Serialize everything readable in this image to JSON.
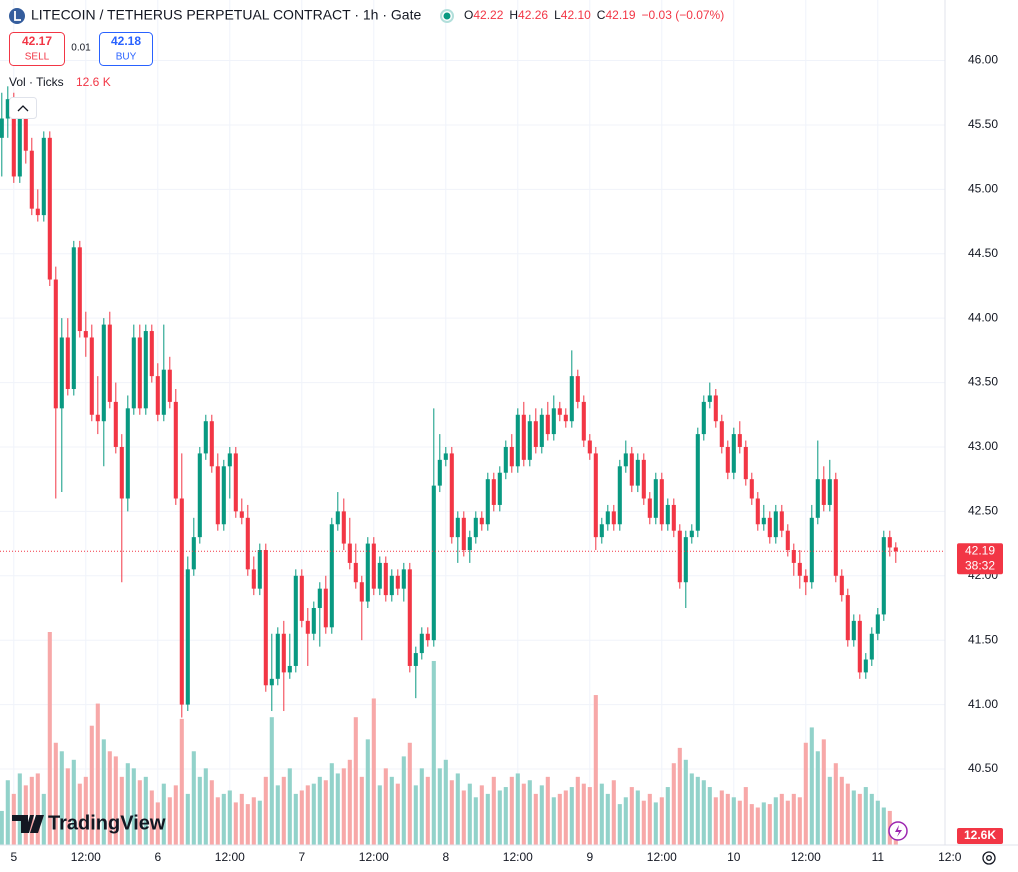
{
  "header": {
    "title": "LITECOIN / TETHERUS PERPETUAL CONTRACT · 1h · Gate",
    "ohlc_legend": [
      {
        "key": "O",
        "value": "42.22"
      },
      {
        "key": "H",
        "value": "42.26"
      },
      {
        "key": "L",
        "value": "42.10"
      },
      {
        "key": "C",
        "value": "42.19"
      }
    ],
    "change": "−0.03 (−0.07%)",
    "sell": {
      "price": "42.17",
      "label": "SELL"
    },
    "spread": "0.01",
    "buy": {
      "price": "42.18",
      "label": "BUY"
    },
    "volume_title": "Vol · Ticks",
    "volume_label": "12.6 K"
  },
  "chart_data": {
    "type": "candlestick",
    "up_color": "#089981",
    "down_color": "#f23645",
    "volume_up_color": "#92d2ca",
    "volume_down_color": "#f7a8a8",
    "grid": true,
    "xlim": [
      -0.3,
      157.2
    ],
    "ylim": [
      39.91,
      46.47
    ],
    "xticks": [
      {
        "value": 2,
        "label": "5"
      },
      {
        "value": 14,
        "label": "12:00"
      },
      {
        "value": 26,
        "label": "6"
      },
      {
        "value": 38,
        "label": "12:00"
      },
      {
        "value": 50,
        "label": "7"
      },
      {
        "value": 62,
        "label": "12:00"
      },
      {
        "value": 74,
        "label": "8"
      },
      {
        "value": 86,
        "label": "12:00"
      },
      {
        "value": 98,
        "label": "9"
      },
      {
        "value": 110,
        "label": "12:00"
      },
      {
        "value": 122,
        "label": "10"
      },
      {
        "value": 134,
        "label": "12:00"
      },
      {
        "value": 146,
        "label": "11"
      },
      {
        "value": 158,
        "label": "12:0"
      }
    ],
    "yticks": [
      {
        "value": 40.5,
        "label": "40.50"
      },
      {
        "value": 41,
        "label": "41.00"
      },
      {
        "value": 41.5,
        "label": "41.50"
      },
      {
        "value": 42,
        "label": "42.00"
      },
      {
        "value": 42.5,
        "label": "42.50"
      },
      {
        "value": 43,
        "label": "43.00"
      },
      {
        "value": 43.5,
        "label": "43.50"
      },
      {
        "value": 44,
        "label": "44.00"
      },
      {
        "value": 44.5,
        "label": "44.50"
      },
      {
        "value": 45,
        "label": "45.00"
      },
      {
        "value": 45.5,
        "label": "45.50"
      },
      {
        "value": 46,
        "label": "46.00"
      }
    ],
    "candles": [
      [
        45.4,
        45.75,
        45.1,
        45.55
      ],
      [
        45.55,
        45.8,
        45.4,
        45.7
      ],
      [
        45.7,
        45.75,
        45.05,
        45.1
      ],
      [
        45.1,
        45.7,
        45.05,
        45.6
      ],
      [
        45.6,
        45.65,
        45.2,
        45.3
      ],
      [
        45.3,
        45.4,
        44.8,
        44.85
      ],
      [
        44.85,
        45.0,
        44.75,
        44.8
      ],
      [
        44.8,
        45.45,
        44.75,
        45.4
      ],
      [
        45.4,
        45.45,
        44.25,
        44.3
      ],
      [
        44.3,
        44.4,
        42.6,
        43.3
      ],
      [
        43.3,
        44.0,
        42.65,
        43.85
      ],
      [
        43.85,
        44.0,
        43.4,
        43.45
      ],
      [
        43.45,
        44.6,
        43.4,
        44.55
      ],
      [
        44.55,
        44.6,
        43.85,
        43.9
      ],
      [
        43.9,
        44.05,
        43.7,
        43.85
      ],
      [
        43.85,
        43.95,
        43.2,
        43.25
      ],
      [
        43.25,
        43.55,
        43.1,
        43.2
      ],
      [
        43.2,
        44.0,
        42.85,
        43.95
      ],
      [
        43.95,
        44.05,
        43.3,
        43.35
      ],
      [
        43.35,
        43.5,
        42.95,
        43.0
      ],
      [
        43.0,
        43.1,
        41.95,
        42.6
      ],
      [
        42.6,
        43.4,
        42.5,
        43.3
      ],
      [
        43.3,
        43.95,
        43.25,
        43.85
      ],
      [
        43.85,
        43.95,
        43.25,
        43.3
      ],
      [
        43.3,
        43.95,
        43.25,
        43.9
      ],
      [
        43.9,
        43.95,
        43.5,
        43.55
      ],
      [
        43.55,
        43.65,
        43.2,
        43.25
      ],
      [
        43.25,
        43.95,
        43.2,
        43.6
      ],
      [
        43.6,
        43.7,
        43.3,
        43.35
      ],
      [
        43.35,
        43.45,
        42.55,
        42.6
      ],
      [
        42.6,
        42.95,
        40.9,
        41.0
      ],
      [
        41.0,
        42.15,
        40.95,
        42.05
      ],
      [
        42.05,
        42.45,
        42.0,
        42.3
      ],
      [
        42.3,
        43.0,
        42.25,
        42.95
      ],
      [
        42.95,
        43.25,
        42.9,
        43.2
      ],
      [
        43.2,
        43.25,
        42.8,
        42.85
      ],
      [
        42.85,
        42.95,
        42.35,
        42.4
      ],
      [
        42.4,
        42.9,
        42.35,
        42.85
      ],
      [
        42.85,
        43.0,
        42.6,
        42.95
      ],
      [
        42.95,
        43.0,
        42.45,
        42.5
      ],
      [
        42.5,
        42.6,
        42.4,
        42.45
      ],
      [
        42.45,
        42.55,
        42.0,
        42.05
      ],
      [
        42.05,
        42.15,
        41.85,
        41.9
      ],
      [
        41.9,
        42.25,
        41.85,
        42.2
      ],
      [
        42.2,
        42.25,
        41.1,
        41.15
      ],
      [
        41.15,
        41.55,
        40.95,
        41.2
      ],
      [
        41.2,
        41.6,
        41.15,
        41.55
      ],
      [
        41.55,
        41.65,
        40.95,
        41.25
      ],
      [
        41.25,
        41.55,
        41.2,
        41.3
      ],
      [
        41.3,
        42.05,
        41.25,
        42.0
      ],
      [
        42.0,
        42.05,
        41.6,
        41.65
      ],
      [
        41.65,
        41.75,
        41.3,
        41.55
      ],
      [
        41.55,
        41.8,
        41.5,
        41.75
      ],
      [
        41.75,
        41.95,
        41.45,
        41.9
      ],
      [
        41.9,
        42.0,
        41.55,
        41.6
      ],
      [
        41.6,
        42.45,
        41.55,
        42.4
      ],
      [
        42.4,
        42.65,
        42.35,
        42.5
      ],
      [
        42.5,
        42.6,
        42.2,
        42.25
      ],
      [
        42.25,
        42.45,
        42.05,
        42.1
      ],
      [
        42.1,
        42.25,
        41.9,
        41.95
      ],
      [
        41.95,
        42.0,
        41.5,
        41.8
      ],
      [
        41.8,
        42.3,
        41.75,
        42.25
      ],
      [
        42.25,
        42.3,
        41.85,
        41.9
      ],
      [
        41.9,
        42.15,
        41.85,
        42.1
      ],
      [
        42.1,
        42.15,
        41.8,
        41.85
      ],
      [
        41.85,
        42.05,
        41.8,
        42.0
      ],
      [
        42.0,
        42.05,
        41.85,
        41.9
      ],
      [
        41.9,
        42.1,
        41.8,
        42.05
      ],
      [
        42.05,
        42.1,
        41.25,
        41.3
      ],
      [
        41.3,
        41.45,
        41.05,
        41.4
      ],
      [
        41.4,
        41.6,
        41.35,
        41.55
      ],
      [
        41.55,
        41.6,
        41.45,
        41.5
      ],
      [
        41.5,
        43.3,
        41.45,
        42.7
      ],
      [
        42.7,
        43.1,
        42.65,
        42.9
      ],
      [
        42.9,
        43.0,
        42.85,
        42.95
      ],
      [
        42.95,
        43.0,
        42.25,
        42.3
      ],
      [
        42.3,
        42.5,
        42.1,
        42.45
      ],
      [
        42.45,
        42.5,
        42.15,
        42.2
      ],
      [
        42.2,
        42.35,
        42.1,
        42.3
      ],
      [
        42.3,
        42.5,
        42.25,
        42.45
      ],
      [
        42.45,
        42.5,
        42.35,
        42.4
      ],
      [
        42.4,
        42.8,
        42.35,
        42.75
      ],
      [
        42.75,
        42.8,
        42.5,
        42.55
      ],
      [
        42.55,
        42.85,
        42.5,
        42.8
      ],
      [
        42.8,
        43.05,
        42.75,
        43.0
      ],
      [
        43.0,
        43.1,
        42.8,
        42.85
      ],
      [
        42.85,
        43.3,
        42.8,
        43.25
      ],
      [
        43.25,
        43.35,
        42.85,
        42.9
      ],
      [
        42.9,
        43.25,
        42.85,
        43.2
      ],
      [
        43.2,
        43.3,
        42.95,
        43.0
      ],
      [
        43.0,
        43.3,
        42.95,
        43.25
      ],
      [
        43.25,
        43.35,
        43.05,
        43.1
      ],
      [
        43.1,
        43.4,
        43.05,
        43.3
      ],
      [
        43.3,
        43.35,
        43.2,
        43.25
      ],
      [
        43.25,
        43.3,
        43.15,
        43.2
      ],
      [
        43.2,
        43.75,
        43.15,
        43.55
      ],
      [
        43.55,
        43.6,
        43.3,
        43.35
      ],
      [
        43.35,
        43.4,
        43.0,
        43.05
      ],
      [
        43.05,
        43.1,
        42.9,
        42.95
      ],
      [
        42.95,
        43.0,
        42.2,
        42.3
      ],
      [
        42.3,
        42.45,
        42.25,
        42.4
      ],
      [
        42.4,
        42.55,
        42.35,
        42.5
      ],
      [
        42.5,
        42.55,
        42.35,
        42.4
      ],
      [
        42.4,
        42.9,
        42.35,
        42.85
      ],
      [
        42.85,
        43.05,
        42.8,
        42.95
      ],
      [
        42.95,
        43.0,
        42.65,
        42.7
      ],
      [
        42.7,
        42.95,
        42.65,
        42.9
      ],
      [
        42.9,
        42.95,
        42.55,
        42.6
      ],
      [
        42.6,
        42.65,
        42.4,
        42.45
      ],
      [
        42.45,
        42.8,
        42.4,
        42.75
      ],
      [
        42.75,
        42.8,
        42.35,
        42.4
      ],
      [
        42.4,
        42.6,
        42.35,
        42.55
      ],
      [
        42.55,
        42.6,
        42.3,
        42.35
      ],
      [
        42.35,
        42.4,
        41.9,
        41.95
      ],
      [
        41.95,
        42.35,
        41.75,
        42.3
      ],
      [
        42.3,
        42.4,
        42.25,
        42.35
      ],
      [
        42.35,
        43.15,
        42.3,
        43.1
      ],
      [
        43.1,
        43.4,
        43.05,
        43.35
      ],
      [
        43.35,
        43.5,
        43.3,
        43.4
      ],
      [
        43.4,
        43.45,
        43.15,
        43.2
      ],
      [
        43.2,
        43.25,
        42.95,
        43.0
      ],
      [
        43.0,
        43.05,
        42.75,
        42.8
      ],
      [
        42.8,
        43.15,
        42.75,
        43.1
      ],
      [
        43.1,
        43.2,
        42.95,
        43.0
      ],
      [
        43.0,
        43.05,
        42.7,
        42.75
      ],
      [
        42.75,
        42.8,
        42.55,
        42.6
      ],
      [
        42.6,
        42.65,
        42.35,
        42.4
      ],
      [
        42.4,
        42.55,
        42.35,
        42.45
      ],
      [
        42.45,
        42.5,
        42.25,
        42.3
      ],
      [
        42.3,
        42.55,
        42.25,
        42.5
      ],
      [
        42.5,
        42.55,
        42.3,
        42.35
      ],
      [
        42.35,
        42.4,
        42.15,
        42.2
      ],
      [
        42.2,
        42.25,
        42.0,
        42.1
      ],
      [
        42.1,
        42.2,
        41.9,
        42.0
      ],
      [
        42.0,
        42.05,
        41.85,
        41.95
      ],
      [
        41.95,
        42.55,
        41.9,
        42.45
      ],
      [
        42.45,
        43.05,
        42.4,
        42.75
      ],
      [
        42.75,
        42.85,
        42.5,
        42.55
      ],
      [
        42.55,
        42.9,
        42.5,
        42.75
      ],
      [
        42.75,
        42.8,
        41.95,
        42.0
      ],
      [
        42.0,
        42.05,
        41.8,
        41.85
      ],
      [
        41.85,
        41.9,
        41.45,
        41.5
      ],
      [
        41.5,
        41.7,
        41.45,
        41.65
      ],
      [
        41.65,
        41.7,
        41.2,
        41.25
      ],
      [
        41.25,
        41.4,
        41.2,
        41.35
      ],
      [
        41.35,
        41.6,
        41.3,
        41.55
      ],
      [
        41.55,
        41.75,
        41.5,
        41.7
      ],
      [
        41.7,
        42.35,
        41.65,
        42.3
      ],
      [
        42.3,
        42.35,
        42.15,
        42.22
      ],
      [
        42.22,
        42.26,
        42.1,
        42.19
      ]
    ],
    "volumes": [
      20,
      38,
      30,
      42,
      35,
      40,
      42,
      30,
      125,
      60,
      55,
      45,
      50,
      36,
      40,
      70,
      83,
      62,
      55,
      52,
      40,
      48,
      45,
      38,
      40,
      32,
      25,
      36,
      28,
      35,
      74,
      30,
      55,
      40,
      45,
      38,
      28,
      30,
      32,
      25,
      30,
      24,
      28,
      26,
      40,
      75,
      35,
      40,
      45,
      30,
      32,
      35,
      36,
      40,
      38,
      48,
      42,
      45,
      50,
      75,
      40,
      62,
      86,
      35,
      45,
      40,
      36,
      52,
      60,
      35,
      45,
      40,
      108,
      45,
      50,
      38,
      42,
      32,
      36,
      28,
      35,
      30,
      40,
      32,
      34,
      40,
      42,
      36,
      38,
      30,
      35,
      40,
      28,
      30,
      32,
      34,
      40,
      36,
      34,
      88,
      36,
      30,
      38,
      24,
      28,
      34,
      32,
      26,
      30,
      25,
      28,
      34,
      48,
      57,
      50,
      42,
      40,
      38,
      34,
      28,
      32,
      30,
      28,
      26,
      34,
      24,
      22,
      25,
      24,
      28,
      30,
      26,
      30,
      28,
      60,
      69,
      55,
      62,
      40,
      48,
      40,
      36,
      32,
      30,
      34,
      30,
      26,
      22,
      20,
      12.6
    ],
    "volume_value_labels": {
      "149": "12.6K"
    },
    "price_label": "42.19",
    "countdown": "38:32"
  },
  "logo": "TradingView"
}
